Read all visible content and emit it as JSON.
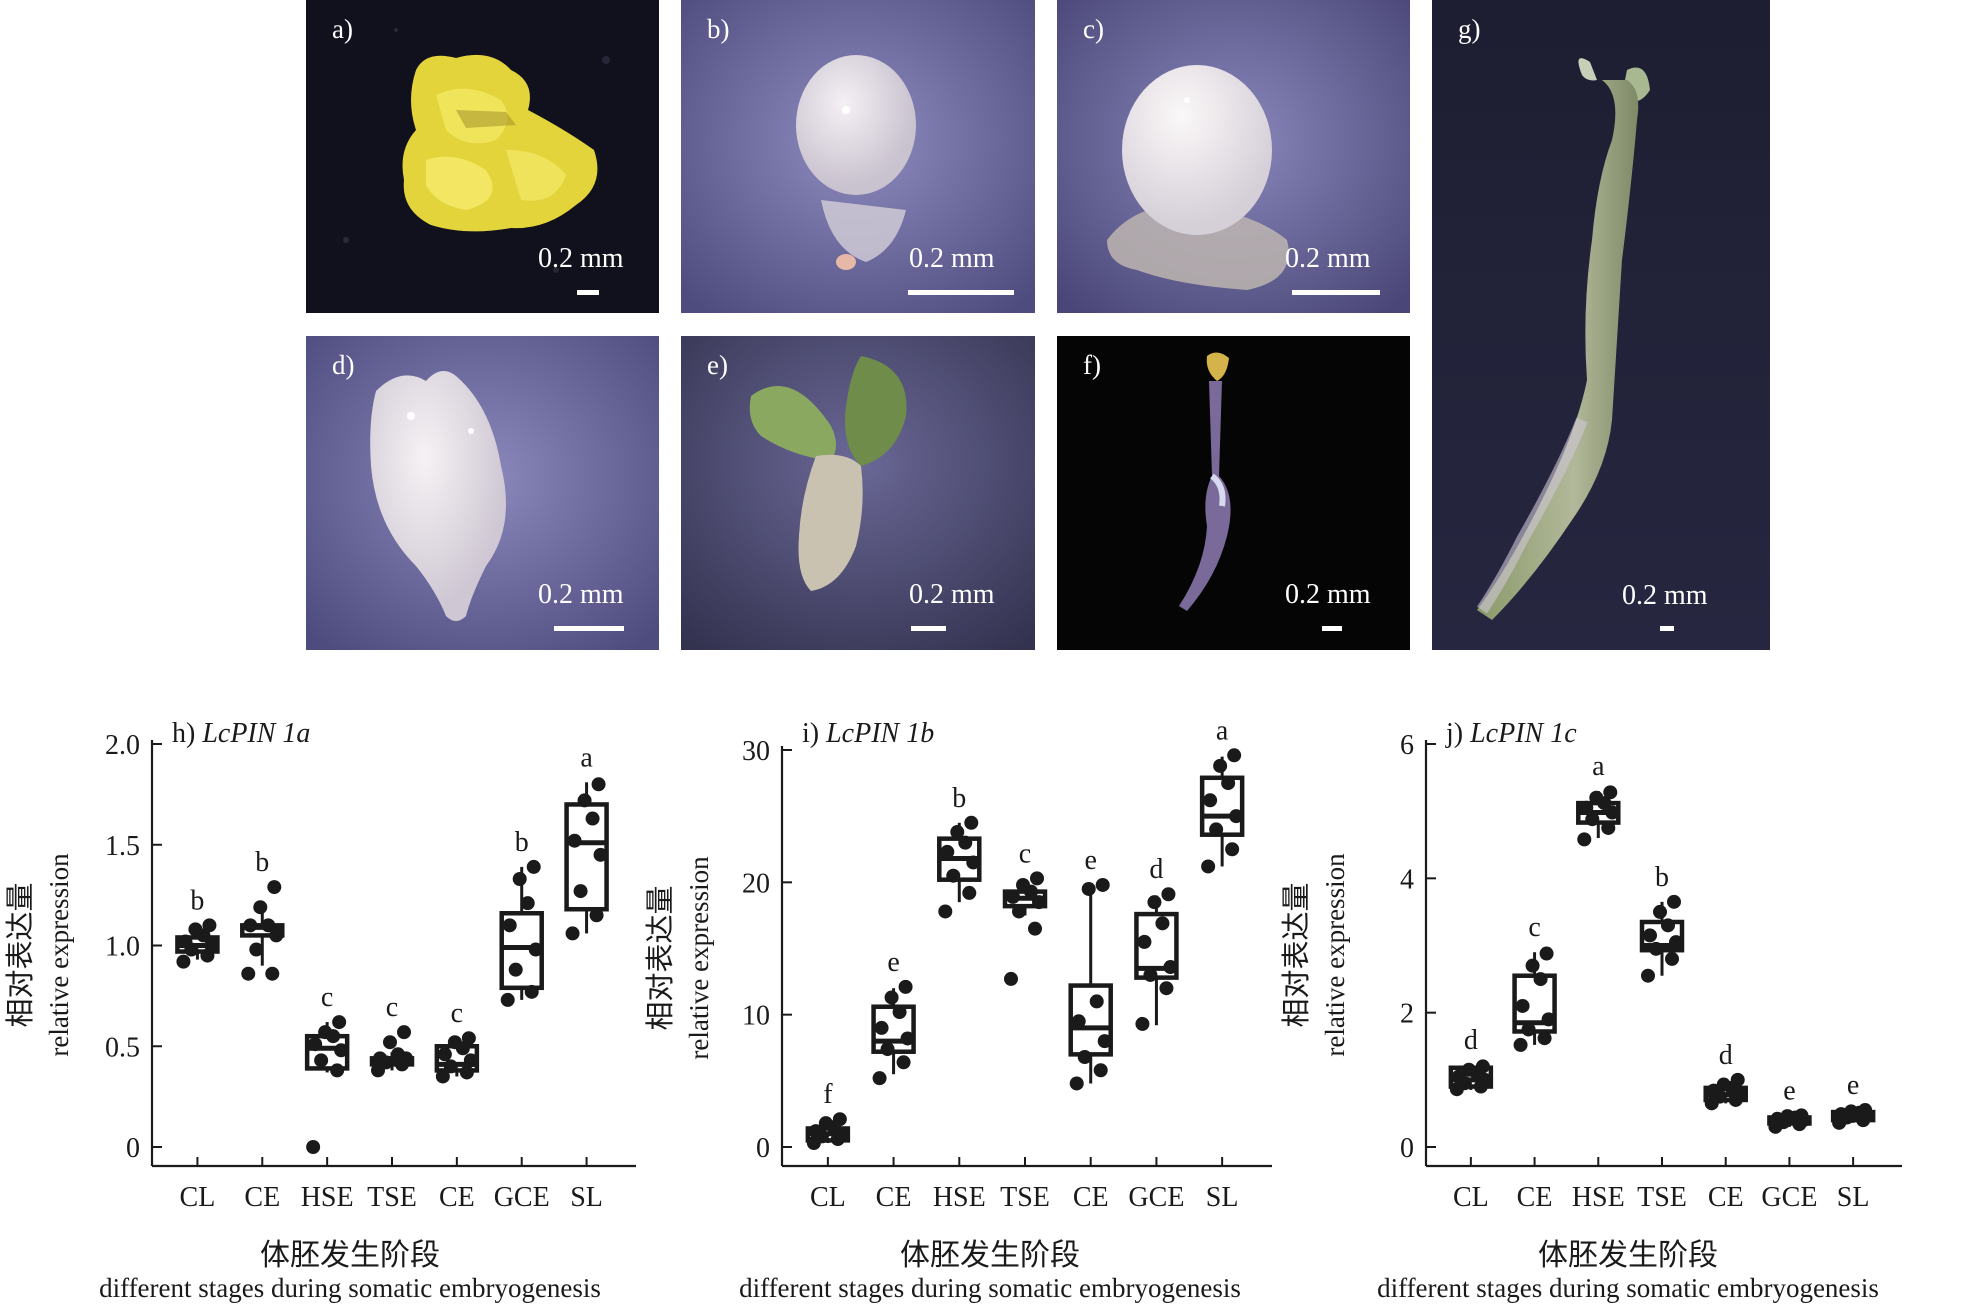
{
  "photos": [
    {
      "label": "a)",
      "scale": "0.2 mm"
    },
    {
      "label": "b)",
      "scale": "0.2 mm"
    },
    {
      "label": "c)",
      "scale": "0.2 mm"
    },
    {
      "label": "d)",
      "scale": "0.2 mm"
    },
    {
      "label": "e)",
      "scale": "0.2 mm"
    },
    {
      "label": "f)",
      "scale": "0.2 mm"
    },
    {
      "label": "g)",
      "scale": "0.2 mm"
    }
  ],
  "colors": {
    "photo_bg_blue": "#5a5a86",
    "photo_bg_dark": "#141420",
    "photo_bg_black": "#050505",
    "callus": "#e4d63a",
    "embryo": "#e6e0e8",
    "seedling_green": "#7d9a5a",
    "ink": "#1a1a1a"
  },
  "chart_data": [
    {
      "type": "box",
      "title": "h) ",
      "title_italic": "LcPIN 1a",
      "ylabel_cn": "相对表达量",
      "ylabel_en": "relative expression",
      "xlabel_cn": "体胚发生阶段",
      "xlabel_en": "different stages during somatic embryogenesis",
      "ylim": [
        -0.1,
        2.0
      ],
      "yticks": [
        0,
        0.5,
        1.0,
        1.5,
        2.0
      ],
      "ytick_labels": [
        "0",
        "0.5",
        "1.0",
        "1.5",
        "2.0"
      ],
      "categories": [
        "CL",
        "CE",
        "HSE",
        "TSE",
        "CE",
        "GCE",
        "SL"
      ],
      "letters": [
        "b",
        "b",
        "c",
        "c",
        "c",
        "b",
        "a"
      ],
      "boxes": [
        {
          "q1": 0.97,
          "median": 1.0,
          "q3": 1.04,
          "min": 0.93,
          "max": 1.07,
          "points": [
            0.92,
            0.95,
            0.98,
            1.0,
            1.02,
            1.05,
            1.08,
            1.1
          ]
        },
        {
          "q1": 1.05,
          "median": 1.09,
          "q3": 1.1,
          "min": 0.9,
          "max": 1.18,
          "points": [
            0.86,
            0.86,
            0.98,
            1.05,
            1.1,
            1.1,
            1.19,
            1.29
          ]
        },
        {
          "q1": 0.39,
          "median": 0.49,
          "q3": 0.55,
          "min": 0.37,
          "max": 0.62,
          "points": [
            0.0,
            0.38,
            0.43,
            0.48,
            0.51,
            0.55,
            0.57,
            0.62
          ]
        },
        {
          "q1": 0.41,
          "median": 0.43,
          "q3": 0.44,
          "min": 0.38,
          "max": 0.47,
          "points": [
            0.38,
            0.41,
            0.42,
            0.44,
            0.44,
            0.46,
            0.52,
            0.57
          ]
        },
        {
          "q1": 0.38,
          "median": 0.41,
          "q3": 0.5,
          "min": 0.35,
          "max": 0.54,
          "points": [
            0.35,
            0.37,
            0.4,
            0.43,
            0.46,
            0.49,
            0.52,
            0.54
          ]
        },
        {
          "q1": 0.79,
          "median": 0.99,
          "q3": 1.16,
          "min": 0.73,
          "max": 1.39,
          "points": [
            0.73,
            0.77,
            0.88,
            0.98,
            1.1,
            1.21,
            1.33,
            1.39
          ]
        },
        {
          "q1": 1.18,
          "median": 1.51,
          "q3": 1.7,
          "min": 1.06,
          "max": 1.81,
          "points": [
            1.06,
            1.15,
            1.27,
            1.45,
            1.52,
            1.63,
            1.72,
            1.8
          ]
        }
      ]
    },
    {
      "type": "box",
      "title": "i) ",
      "title_italic": "LcPIN 1b",
      "ylabel_cn": "相对表达量",
      "ylabel_en": "relative expression",
      "xlabel_cn": "体胚发生阶段",
      "xlabel_en": "different stages during somatic embryogenesis",
      "ylim": [
        -1.5,
        30
      ],
      "yticks": [
        0,
        10,
        20,
        30
      ],
      "ytick_labels": [
        "0",
        "10",
        "20",
        "30"
      ],
      "categories": [
        "CL",
        "CE",
        "HSE",
        "TSE",
        "CE",
        "GCE",
        "SL"
      ],
      "letters": [
        "f",
        "e",
        "b",
        "c",
        "e",
        "d",
        "a"
      ],
      "boxes": [
        {
          "q1": 0.5,
          "median": 1.0,
          "q3": 1.4,
          "min": 0.3,
          "max": 2.0,
          "points": [
            0.3,
            0.6,
            0.8,
            1.0,
            1.2,
            1.5,
            1.8,
            2.1
          ]
        },
        {
          "q1": 7.2,
          "median": 8.0,
          "q3": 10.6,
          "min": 5.5,
          "max": 12.0,
          "points": [
            5.2,
            6.4,
            7.4,
            8.2,
            9.0,
            10.2,
            11.3,
            12.1
          ]
        },
        {
          "q1": 20.2,
          "median": 21.8,
          "q3": 23.3,
          "min": 18.5,
          "max": 24.5,
          "points": [
            17.8,
            19.2,
            20.5,
            21.5,
            22.3,
            23.0,
            23.8,
            24.5
          ]
        },
        {
          "q1": 18.2,
          "median": 18.8,
          "q3": 19.3,
          "min": 17.5,
          "max": 20.2,
          "points": [
            12.7,
            16.5,
            17.8,
            18.5,
            18.9,
            19.3,
            19.8,
            20.3
          ]
        },
        {
          "q1": 7.0,
          "median": 9.0,
          "q3": 12.2,
          "min": 4.8,
          "max": 19.8,
          "points": [
            4.8,
            5.8,
            6.8,
            8.0,
            9.5,
            11.0,
            19.5,
            19.8
          ]
        },
        {
          "q1": 12.8,
          "median": 13.5,
          "q3": 17.6,
          "min": 9.2,
          "max": 19.0,
          "points": [
            9.3,
            12.0,
            13.0,
            13.6,
            15.5,
            16.9,
            18.5,
            19.1
          ]
        },
        {
          "q1": 23.6,
          "median": 25.0,
          "q3": 27.9,
          "min": 21.2,
          "max": 29.5,
          "points": [
            21.2,
            22.5,
            24.0,
            25.0,
            26.2,
            27.5,
            28.8,
            29.6
          ]
        }
      ]
    },
    {
      "type": "box",
      "title": "j) ",
      "title_italic": "LcPIN 1c",
      "ylabel_cn": "相对表达量",
      "ylabel_en": "relative expression",
      "xlabel_cn": "体胚发生阶段",
      "xlabel_en": "different stages during somatic embryogenesis",
      "ylim": [
        -0.3,
        6
      ],
      "yticks": [
        0,
        2,
        4,
        6
      ],
      "ytick_labels": [
        "0",
        "2",
        "4",
        "6"
      ],
      "categories": [
        "CL",
        "CE",
        "HSE",
        "TSE",
        "CE",
        "GCE",
        "SL"
      ],
      "letters": [
        "d",
        "c",
        "a",
        "b",
        "d",
        "e",
        "e"
      ],
      "boxes": [
        {
          "q1": 0.9,
          "median": 1.0,
          "q3": 1.18,
          "min": 0.85,
          "max": 1.22,
          "points": [
            0.86,
            0.9,
            0.95,
            1.0,
            1.05,
            1.1,
            1.15,
            1.2
          ]
        },
        {
          "q1": 1.72,
          "median": 1.85,
          "q3": 2.55,
          "min": 1.52,
          "max": 2.9,
          "points": [
            1.52,
            1.62,
            1.75,
            1.9,
            2.1,
            2.5,
            2.7,
            2.88
          ]
        },
        {
          "q1": 4.83,
          "median": 4.98,
          "q3": 5.12,
          "min": 4.6,
          "max": 5.3,
          "points": [
            4.58,
            4.75,
            4.88,
            4.98,
            5.05,
            5.12,
            5.2,
            5.28
          ]
        },
        {
          "q1": 2.93,
          "median": 3.0,
          "q3": 3.35,
          "min": 2.55,
          "max": 3.65,
          "points": [
            2.55,
            2.8,
            2.95,
            3.05,
            3.15,
            3.3,
            3.5,
            3.65
          ]
        },
        {
          "q1": 0.7,
          "median": 0.78,
          "q3": 0.88,
          "min": 0.65,
          "max": 1.0,
          "points": [
            0.65,
            0.7,
            0.75,
            0.8,
            0.84,
            0.88,
            0.93,
            1.0
          ]
        },
        {
          "q1": 0.35,
          "median": 0.4,
          "q3": 0.44,
          "min": 0.3,
          "max": 0.47,
          "points": [
            0.3,
            0.34,
            0.37,
            0.4,
            0.42,
            0.44,
            0.46,
            0.47
          ]
        },
        {
          "q1": 0.4,
          "median": 0.47,
          "q3": 0.52,
          "min": 0.36,
          "max": 0.55,
          "points": [
            0.36,
            0.4,
            0.44,
            0.47,
            0.49,
            0.51,
            0.53,
            0.55
          ]
        }
      ]
    }
  ]
}
